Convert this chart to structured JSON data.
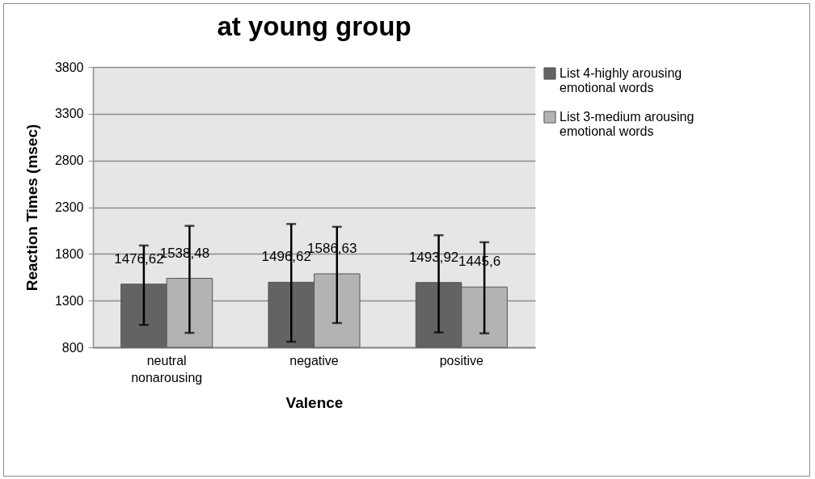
{
  "chart_data": {
    "type": "bar",
    "title": "at young group",
    "xlabel": "Valence",
    "ylabel": "Reaction Times (msec)",
    "categories": [
      "neutral nonarousing",
      "negative",
      "positive"
    ],
    "series": [
      {
        "name": "List 4-highly arousing emotional words",
        "color": "#636363",
        "values": [
          1476.62,
          1496.62,
          1493.92
        ],
        "value_labels": [
          "1476,62",
          "1496,62",
          "1493,92"
        ],
        "errors": [
          [
            1040,
            1890
          ],
          [
            860,
            2120
          ],
          [
            960,
            2000
          ]
        ]
      },
      {
        "name": "List 3-medium arousing emotional words",
        "color": "#b3b3b3",
        "values": [
          1538.48,
          1586.63,
          1445.6
        ],
        "value_labels": [
          "1538,48",
          "1586,63",
          "1445,6"
        ],
        "errors": [
          [
            955,
            2100
          ],
          [
            1060,
            2090
          ],
          [
            950,
            1925
          ]
        ]
      }
    ],
    "ylim": [
      800,
      3800
    ],
    "yticks": [
      800,
      1300,
      1800,
      2300,
      2800,
      3300,
      3800
    ],
    "grid": "y",
    "legend": "right"
  }
}
